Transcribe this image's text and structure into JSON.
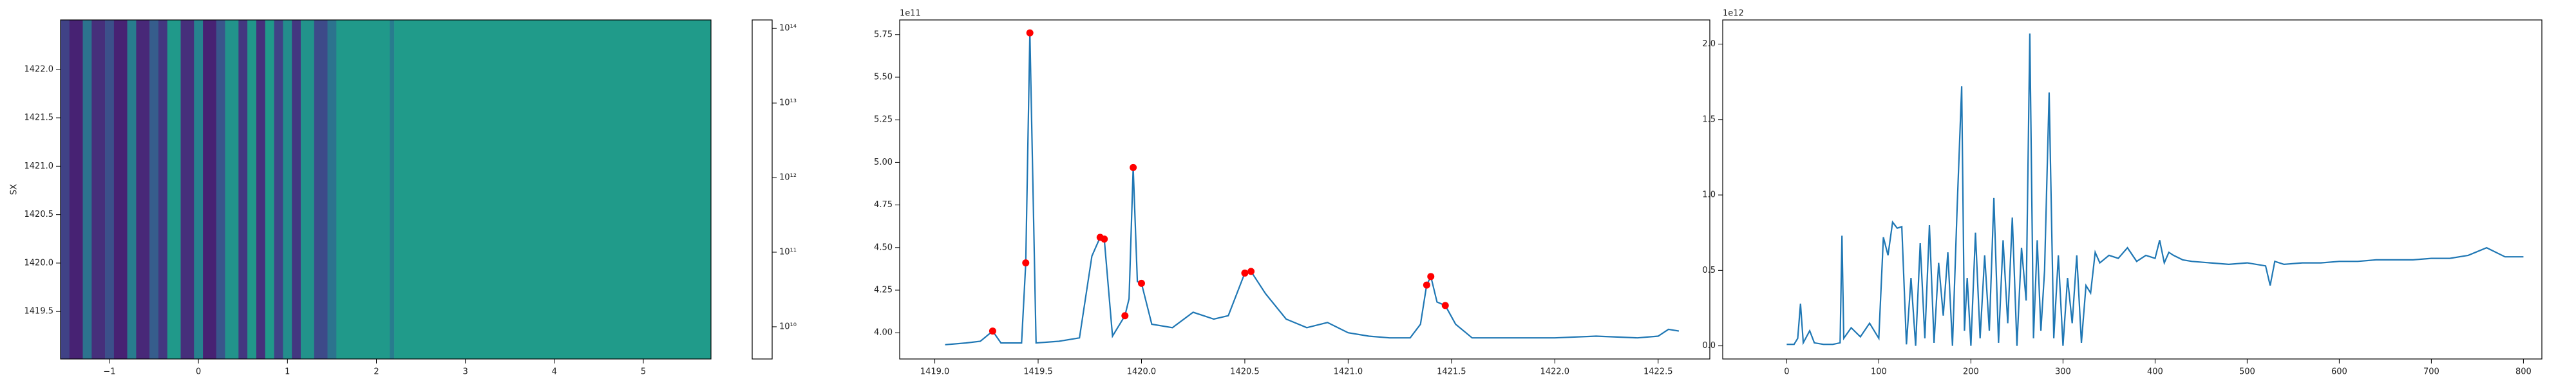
{
  "chart_data": [
    {
      "type": "heatmap",
      "ylabel": "SX",
      "colormap": "viridis",
      "xlim": [
        -1.55,
        5.76
      ],
      "ylim": [
        1419.01,
        1422.51
      ],
      "xticks": [
        {
          "value": -1,
          "label": "−1"
        },
        0,
        1,
        2,
        3,
        4,
        5
      ],
      "yticks": [
        {
          "value": 1419.5,
          "label": "1419.5"
        },
        {
          "value": 1420,
          "label": "1420.0"
        },
        {
          "value": 1420.5,
          "label": "1420.5"
        },
        {
          "value": 1421,
          "label": "1421.0"
        },
        {
          "value": 1421.5,
          "label": "1421.5"
        },
        {
          "value": 1422,
          "label": "1422.0"
        }
      ],
      "x_edges": [
        -1.55,
        -1.45,
        -1.3,
        -1.2,
        -1.05,
        -0.95,
        -0.8,
        -0.7,
        -0.55,
        -0.45,
        -0.35,
        -0.2,
        -0.05,
        0.05,
        0.2,
        0.3,
        0.45,
        0.55,
        0.65,
        0.75,
        0.85,
        0.95,
        1.05,
        1.15,
        1.3,
        1.45,
        1.55,
        2.15,
        2.2,
        5.76
      ],
      "values": [
        30000000000.0,
        10000000000.0,
        200000000000.0,
        15000000000.0,
        50000000000.0,
        10000000000.0,
        300000000000.0,
        12000000000.0,
        80000000000.0,
        20000000000.0,
        1000000000000.0,
        15000000000.0,
        400000000000.0,
        10000000000.0,
        60000000000.0,
        800000000000.0,
        20000000000.0,
        900000000000.0,
        15000000000.0,
        1000000000000.0,
        30000000000.0,
        600000000000.0,
        20000000000.0,
        800000000000.0,
        40000000000.0,
        200000000000.0,
        1000000000000.0,
        300000000000.0,
        1100000000000.0
      ],
      "colorbar": {
        "scale": "log",
        "lim": [
          3700000000.0,
          130000000000000.0
        ],
        "ticks": [
          {
            "value": 10000000000.0,
            "label": "10¹⁰"
          },
          {
            "value": 100000000000.0,
            "label": "10¹¹"
          },
          {
            "value": 1000000000000.0,
            "label": "10¹²"
          },
          {
            "value": 10000000000000.0,
            "label": "10¹³"
          },
          {
            "value": 100000000000000.0,
            "label": "10¹⁴"
          }
        ]
      }
    },
    {
      "type": "line",
      "offset_label": "1e11",
      "xlim": [
        1418.83,
        1422.75
      ],
      "ylim": [
        3.846,
        5.836
      ],
      "xticks": [
        {
          "value": 1419,
          "label": "1419.0"
        },
        {
          "value": 1419.5,
          "label": "1419.5"
        },
        {
          "value": 1420,
          "label": "1420.0"
        },
        {
          "value": 1420.5,
          "label": "1420.5"
        },
        {
          "value": 1421,
          "label": "1421.0"
        },
        {
          "value": 1421.5,
          "label": "1421.5"
        },
        {
          "value": 1422,
          "label": "1422.0"
        },
        {
          "value": 1422.5,
          "label": "1422.5"
        }
      ],
      "yticks": [
        {
          "value": 4,
          "label": "4.00"
        },
        {
          "value": 4.25,
          "label": "4.25"
        },
        {
          "value": 4.5,
          "label": "4.50"
        },
        {
          "value": 4.75,
          "label": "4.75"
        },
        {
          "value": 5,
          "label": "5.00"
        },
        {
          "value": 5.25,
          "label": "5.25"
        },
        {
          "value": 5.5,
          "label": "5.50"
        },
        {
          "value": 5.75,
          "label": "5.75"
        }
      ],
      "series": [
        {
          "style": "line",
          "color": "#1f77b4",
          "x": [
            1419.05,
            1419.15,
            1419.22,
            1419.28,
            1419.32,
            1419.42,
            1419.44,
            1419.46,
            1419.49,
            1419.6,
            1419.7,
            1419.76,
            1419.8,
            1419.82,
            1419.86,
            1419.92,
            1419.94,
            1419.96,
            1419.98,
            1420.0,
            1420.05,
            1420.15,
            1420.25,
            1420.3,
            1420.35,
            1420.42,
            1420.5,
            1420.53,
            1420.6,
            1420.7,
            1420.8,
            1420.9,
            1421.0,
            1421.1,
            1421.2,
            1421.3,
            1421.35,
            1421.38,
            1421.4,
            1421.43,
            1421.47,
            1421.52,
            1421.6,
            1421.8,
            1422.0,
            1422.2,
            1422.4,
            1422.5,
            1422.55,
            1422.6
          ],
          "values": [
            3.93,
            3.94,
            3.95,
            4.01,
            3.94,
            3.94,
            4.41,
            5.76,
            3.94,
            3.95,
            3.97,
            4.45,
            4.56,
            4.55,
            3.98,
            4.1,
            4.2,
            4.97,
            4.3,
            4.29,
            4.05,
            4.03,
            4.12,
            4.1,
            4.08,
            4.1,
            4.35,
            4.36,
            4.23,
            4.08,
            4.03,
            4.06,
            4.0,
            3.98,
            3.97,
            3.97,
            4.05,
            4.28,
            4.33,
            4.18,
            4.16,
            4.05,
            3.97,
            3.97,
            3.97,
            3.98,
            3.97,
            3.98,
            4.02,
            4.01
          ]
        },
        {
          "style": "scatter",
          "color": "red",
          "x": [
            1419.28,
            1419.44,
            1419.46,
            1419.8,
            1419.82,
            1419.92,
            1419.96,
            1420.0,
            1420.5,
            1420.53,
            1421.38,
            1421.4,
            1421.47
          ],
          "values": [
            4.01,
            4.41,
            5.76,
            4.56,
            4.55,
            4.1,
            4.97,
            4.29,
            4.35,
            4.36,
            4.28,
            4.33,
            4.16
          ]
        }
      ]
    },
    {
      "type": "line",
      "offset_label": "1e12",
      "xlim": [
        -69.5,
        820
      ],
      "ylim": [
        -0.087,
        2.16
      ],
      "xticks": [
        0,
        100,
        200,
        300,
        400,
        500,
        600,
        700,
        800
      ],
      "yticks": [
        {
          "value": 0,
          "label": "0.0"
        },
        {
          "value": 0.5,
          "label": "0.5"
        },
        {
          "value": 1,
          "label": "1.0"
        },
        {
          "value": 1.5,
          "label": "1.5"
        },
        {
          "value": 2,
          "label": "2.0"
        }
      ],
      "series": [
        {
          "style": "line",
          "color": "#1f77b4",
          "x": [
            0,
            8,
            12,
            15,
            18,
            25,
            30,
            40,
            50,
            58,
            60,
            62,
            70,
            80,
            90,
            100,
            105,
            110,
            115,
            120,
            125,
            130,
            135,
            140,
            145,
            150,
            155,
            160,
            165,
            170,
            175,
            180,
            185,
            190,
            193,
            196,
            200,
            205,
            210,
            215,
            220,
            225,
            230,
            235,
            240,
            245,
            250,
            255,
            260,
            264,
            268,
            272,
            276,
            280,
            285,
            290,
            295,
            300,
            305,
            310,
            315,
            320,
            325,
            330,
            335,
            340,
            350,
            360,
            370,
            380,
            390,
            400,
            405,
            410,
            415,
            420,
            430,
            440,
            460,
            480,
            500,
            520,
            525,
            530,
            540,
            560,
            580,
            600,
            620,
            640,
            660,
            680,
            700,
            720,
            740,
            760,
            780,
            800
          ],
          "values": [
            0.01,
            0.01,
            0.05,
            0.28,
            0.02,
            0.1,
            0.02,
            0.01,
            0.01,
            0.02,
            0.73,
            0.05,
            0.12,
            0.06,
            0.15,
            0.05,
            0.72,
            0.6,
            0.82,
            0.78,
            0.79,
            0.01,
            0.45,
            0.0,
            0.68,
            0.05,
            0.8,
            0.02,
            0.55,
            0.2,
            0.62,
            0.0,
            0.9,
            1.72,
            0.1,
            0.45,
            0.0,
            0.75,
            0.05,
            0.6,
            0.1,
            0.98,
            0.02,
            0.7,
            0.15,
            0.85,
            0.0,
            0.65,
            0.3,
            2.07,
            0.05,
            0.7,
            0.1,
            0.5,
            1.68,
            0.05,
            0.6,
            0.0,
            0.45,
            0.15,
            0.6,
            0.02,
            0.4,
            0.35,
            0.62,
            0.55,
            0.6,
            0.58,
            0.65,
            0.56,
            0.6,
            0.58,
            0.7,
            0.55,
            0.62,
            0.6,
            0.57,
            0.56,
            0.55,
            0.54,
            0.55,
            0.53,
            0.4,
            0.56,
            0.54,
            0.55,
            0.55,
            0.56,
            0.56,
            0.57,
            0.57,
            0.57,
            0.58,
            0.58,
            0.6,
            0.65,
            0.59,
            0.59
          ]
        }
      ]
    }
  ]
}
